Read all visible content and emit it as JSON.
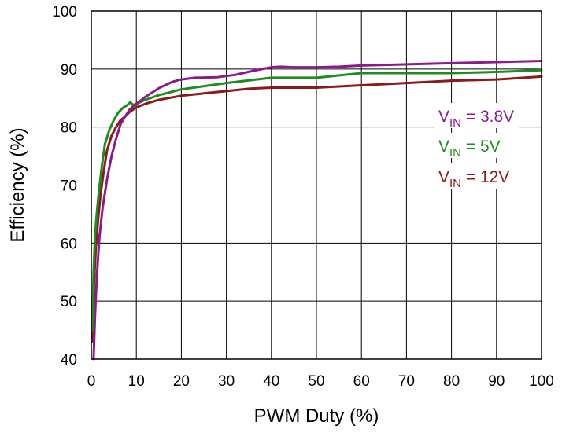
{
  "chart_data": {
    "type": "line",
    "title": "",
    "xlabel": "PWM Duty (%)",
    "ylabel": "Efficiency (%)",
    "xlim": [
      0,
      100
    ],
    "ylim": [
      40,
      100
    ],
    "xticks": [
      "0",
      "10",
      "20",
      "30",
      "40",
      "50",
      "60",
      "70",
      "80",
      "90",
      "100"
    ],
    "yticks": [
      "40",
      "50",
      "60",
      "70",
      "80",
      "90",
      "100"
    ],
    "grid": true,
    "legend_position": "right",
    "series": [
      {
        "name": "VIN = 3.8V",
        "legend": {
          "base": "V",
          "sub": "IN",
          "rest": " = 3.8V"
        },
        "color": "#8B1A8B",
        "x": [
          0.5,
          0.8,
          1.2,
          1.8,
          2.5,
          3.5,
          4.5,
          5.5,
          6.5,
          7.5,
          8.5,
          10,
          12,
          15,
          18,
          20,
          23,
          28,
          32,
          36,
          40,
          42,
          45,
          50,
          55,
          60,
          70,
          80,
          90,
          100
        ],
        "y": [
          40,
          47,
          54,
          61,
          66,
          71,
          75,
          78,
          80.5,
          81.8,
          83,
          84,
          85.2,
          86.7,
          87.8,
          88.2,
          88.5,
          88.6,
          89,
          89.7,
          90.3,
          90.4,
          90.3,
          90.3,
          90.4,
          90.6,
          90.8,
          91.0,
          91.2,
          91.4
        ]
      },
      {
        "name": "VIN = 5V",
        "legend": {
          "base": "V",
          "sub": "IN",
          "rest": " = 5V"
        },
        "color": "#1E8C1E",
        "x": [
          0.2,
          0.5,
          0.8,
          1.2,
          1.7,
          2.3,
          3,
          4,
          5,
          6,
          7,
          8,
          8.7,
          9.2,
          10,
          12,
          15,
          20,
          30,
          40,
          50,
          60,
          70,
          80,
          90,
          100
        ],
        "y": [
          45,
          55,
          61,
          65,
          69,
          73,
          77,
          79.5,
          81.2,
          82.5,
          83.3,
          83.8,
          84.3,
          83.8,
          84,
          84.7,
          85.5,
          86.5,
          87.6,
          88.5,
          88.5,
          89.3,
          89.3,
          89.3,
          89.5,
          89.8
        ]
      },
      {
        "name": "VIN = 12V",
        "legend": {
          "base": "V",
          "sub": "IN",
          "rest": " = 12V"
        },
        "color": "#8B1A1A",
        "x": [
          0.3,
          0.6,
          1,
          1.5,
          2,
          2.7,
          3.5,
          4.5,
          5.5,
          6.5,
          7.5,
          8.5,
          10,
          12,
          15,
          20,
          25,
          30,
          35,
          40,
          50,
          60,
          70,
          80,
          90,
          100
        ],
        "y": [
          43,
          53,
          59,
          64,
          68,
          72,
          76,
          78.5,
          80,
          81.2,
          81.8,
          82.6,
          83.4,
          84,
          84.7,
          85.4,
          85.8,
          86.2,
          86.6,
          86.8,
          86.8,
          87.2,
          87.6,
          88.0,
          88.2,
          88.7
        ]
      }
    ]
  }
}
